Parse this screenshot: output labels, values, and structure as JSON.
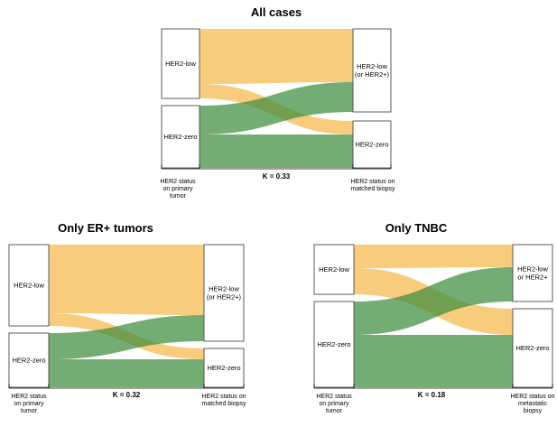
{
  "colors": {
    "her2_low_flow": "#f5b84a",
    "her2_zero_flow": "#3e8e3e",
    "node_border": "#4a4a4a"
  },
  "panels": [
    {
      "title": "All cases",
      "left_nodes": [
        "HER2-low",
        "HER2-zero"
      ],
      "right_nodes": [
        "HER2-low\n(or HER2+)",
        "HER2-zero"
      ],
      "left_axis_label": "HER2 status\non primary\ntumor",
      "right_axis_label": "HER2 status on\nmatched biopsy",
      "kappa": "K = 0.33"
    },
    {
      "title": "Only ER+ tumors",
      "left_nodes": [
        "HER2-low",
        "HER2-zero"
      ],
      "right_nodes": [
        "HER2-low\n(or HER2+)",
        "HER2-zero"
      ],
      "left_axis_label": "HER2 status\non primary\ntumor",
      "right_axis_label": "HER2 status on\nmatched biopsy",
      "kappa": "K = 0.32"
    },
    {
      "title": "Only TNBC",
      "left_nodes": [
        "HER2-low",
        "HER2-zero"
      ],
      "right_nodes": [
        "HER2-low\nor HER2+",
        "HER2-zero"
      ],
      "left_axis_label": "HER2 status\non primary\ntumor",
      "right_axis_label": "HER2 status on\nmetastatic\nbiopsy",
      "kappa": "K = 0.18"
    }
  ]
}
